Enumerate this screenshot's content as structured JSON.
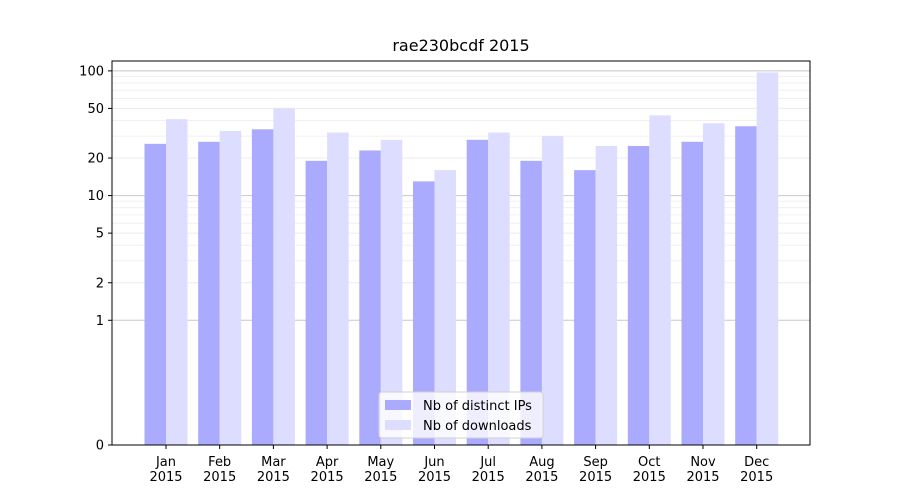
{
  "chart_data": {
    "type": "bar",
    "title": "rae230bcdf 2015",
    "xlabel": "",
    "ylabel": "",
    "y_scale": "symlog",
    "ylim": [
      0,
      120
    ],
    "y_ticks": [
      0,
      1,
      2,
      5,
      10,
      20,
      50,
      100
    ],
    "grid": "horizontal",
    "legend_position": "bottom-center",
    "categories": [
      [
        "Jan",
        "2015"
      ],
      [
        "Feb",
        "2015"
      ],
      [
        "Mar",
        "2015"
      ],
      [
        "Apr",
        "2015"
      ],
      [
        "May",
        "2015"
      ],
      [
        "Jun",
        "2015"
      ],
      [
        "Jul",
        "2015"
      ],
      [
        "Aug",
        "2015"
      ],
      [
        "Sep",
        "2015"
      ],
      [
        "Oct",
        "2015"
      ],
      [
        "Nov",
        "2015"
      ],
      [
        "Dec",
        "2015"
      ]
    ],
    "series": [
      {
        "name": "Nb of distinct IPs",
        "color": "#aaaaff",
        "values": [
          26,
          27,
          34,
          19,
          23,
          13,
          28,
          19,
          16,
          25,
          27,
          36
        ]
      },
      {
        "name": "Nb of downloads",
        "color": "#ddddff",
        "values": [
          41,
          33,
          50,
          32,
          28,
          16,
          32,
          30,
          25,
          44,
          38,
          97
        ]
      }
    ]
  }
}
